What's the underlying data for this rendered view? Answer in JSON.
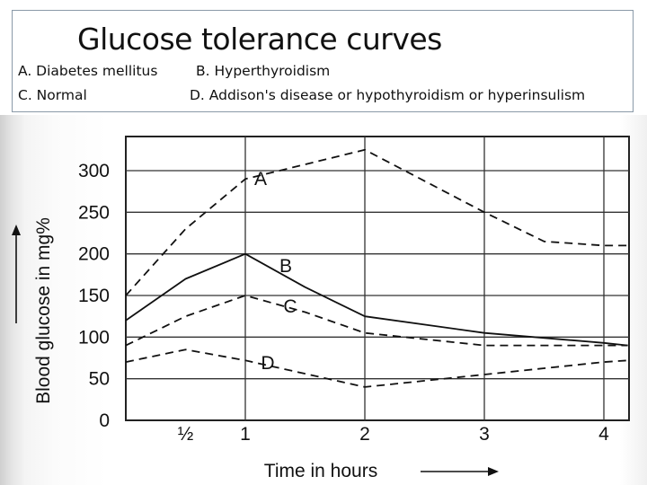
{
  "slide": {
    "title": "Glucose tolerance curves",
    "legend": {
      "a": "A. Diabetes mellitus",
      "b": "B. Hyperthyroidism",
      "c": "C. Normal",
      "d": "D. Addison's disease or hypothyroidism or hyperinsulism"
    }
  },
  "chart_data": {
    "type": "line",
    "xlabel": "Time in hours",
    "ylabel": "Blood glucose in mg%",
    "xlim": [
      0,
      4.2
    ],
    "ylim": [
      0,
      320
    ],
    "x_ticks": [
      {
        "value": 0.5,
        "label": "½"
      },
      {
        "value": 1,
        "label": "1"
      },
      {
        "value": 2,
        "label": "2"
      },
      {
        "value": 3,
        "label": "3"
      },
      {
        "value": 4,
        "label": "4"
      }
    ],
    "y_ticks": [
      {
        "value": 0,
        "label": "0"
      },
      {
        "value": 50,
        "label": "50"
      },
      {
        "value": 100,
        "label": "100"
      },
      {
        "value": 150,
        "label": "150"
      },
      {
        "value": 200,
        "label": "200"
      },
      {
        "value": 250,
        "label": "250"
      },
      {
        "value": 300,
        "label": "300"
      }
    ],
    "grid": true,
    "series": [
      {
        "name": "A",
        "style": "dashed",
        "x": [
          0,
          0.5,
          1,
          2,
          3,
          3.5,
          4,
          4.2
        ],
        "y": [
          150,
          230,
          290,
          325,
          250,
          215,
          210,
          210
        ]
      },
      {
        "name": "B",
        "style": "solid",
        "x": [
          0,
          0.5,
          1,
          1.5,
          2,
          3,
          4,
          4.2
        ],
        "y": [
          120,
          170,
          200,
          160,
          125,
          105,
          93,
          90
        ]
      },
      {
        "name": "C",
        "style": "dashed",
        "x": [
          0,
          0.5,
          1,
          1.5,
          2,
          3,
          4,
          4.2
        ],
        "y": [
          90,
          125,
          150,
          130,
          105,
          90,
          90,
          90
        ]
      },
      {
        "name": "D",
        "style": "dashed",
        "x": [
          0,
          0.5,
          1,
          2,
          3,
          4,
          4.2
        ],
        "y": [
          70,
          85,
          72,
          40,
          55,
          70,
          72
        ]
      }
    ]
  }
}
